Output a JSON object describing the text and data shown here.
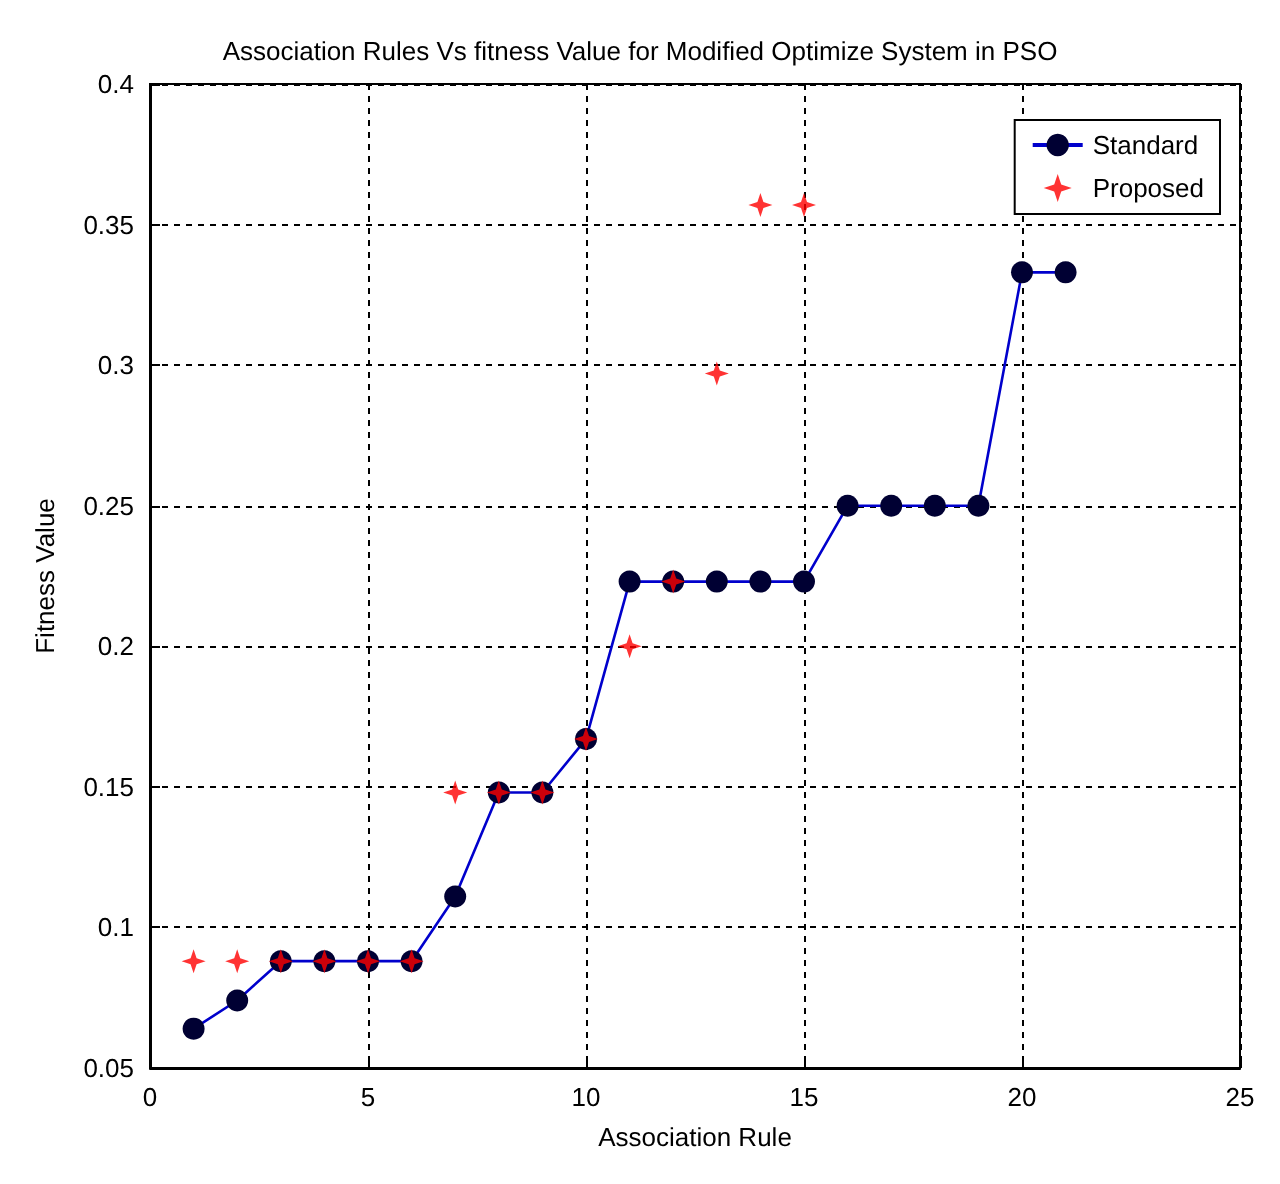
{
  "chart_data": {
    "type": "line",
    "title": "Association Rules Vs fitness Value for Modified Optimize System in PSO",
    "xlabel": "Association Rule",
    "ylabel": "Fitness Value",
    "xlim": [
      0,
      25
    ],
    "xticks": [
      0,
      5,
      10,
      15,
      20,
      25
    ],
    "ylim": [
      0.05,
      0.4
    ],
    "yticks": [
      0.05,
      0.1,
      0.15,
      0.2,
      0.25,
      0.3,
      0.35,
      0.4
    ],
    "grid": true,
    "legend": "top right",
    "series": [
      {
        "name": "Standard",
        "color": "#0000cc",
        "marker": "circle",
        "line_style": "solid",
        "x": [
          1,
          2,
          3,
          4,
          5,
          6,
          7,
          8,
          9,
          10,
          11,
          12,
          13,
          14,
          15,
          16,
          17,
          18,
          19,
          20,
          21
        ],
        "values": [
          0.064,
          0.074,
          0.088,
          0.088,
          0.088,
          0.088,
          0.111,
          0.148,
          0.148,
          0.167,
          0.223,
          0.223,
          0.223,
          0.223,
          0.223,
          0.25,
          0.25,
          0.25,
          0.25,
          0.333,
          0.333
        ]
      },
      {
        "name": "Proposed",
        "type": "scatter",
        "color": "#ff0000",
        "marker": "cross",
        "x": [
          1,
          2,
          3,
          4,
          5,
          6,
          7,
          8,
          9,
          10,
          11,
          12,
          13,
          14,
          15
        ],
        "values": [
          0.088,
          0.088,
          0.088,
          0.088,
          0.088,
          0.088,
          0.148,
          0.148,
          0.148,
          0.167,
          0.2,
          0.223,
          0.297,
          0.357,
          0.357
        ]
      }
    ]
  }
}
